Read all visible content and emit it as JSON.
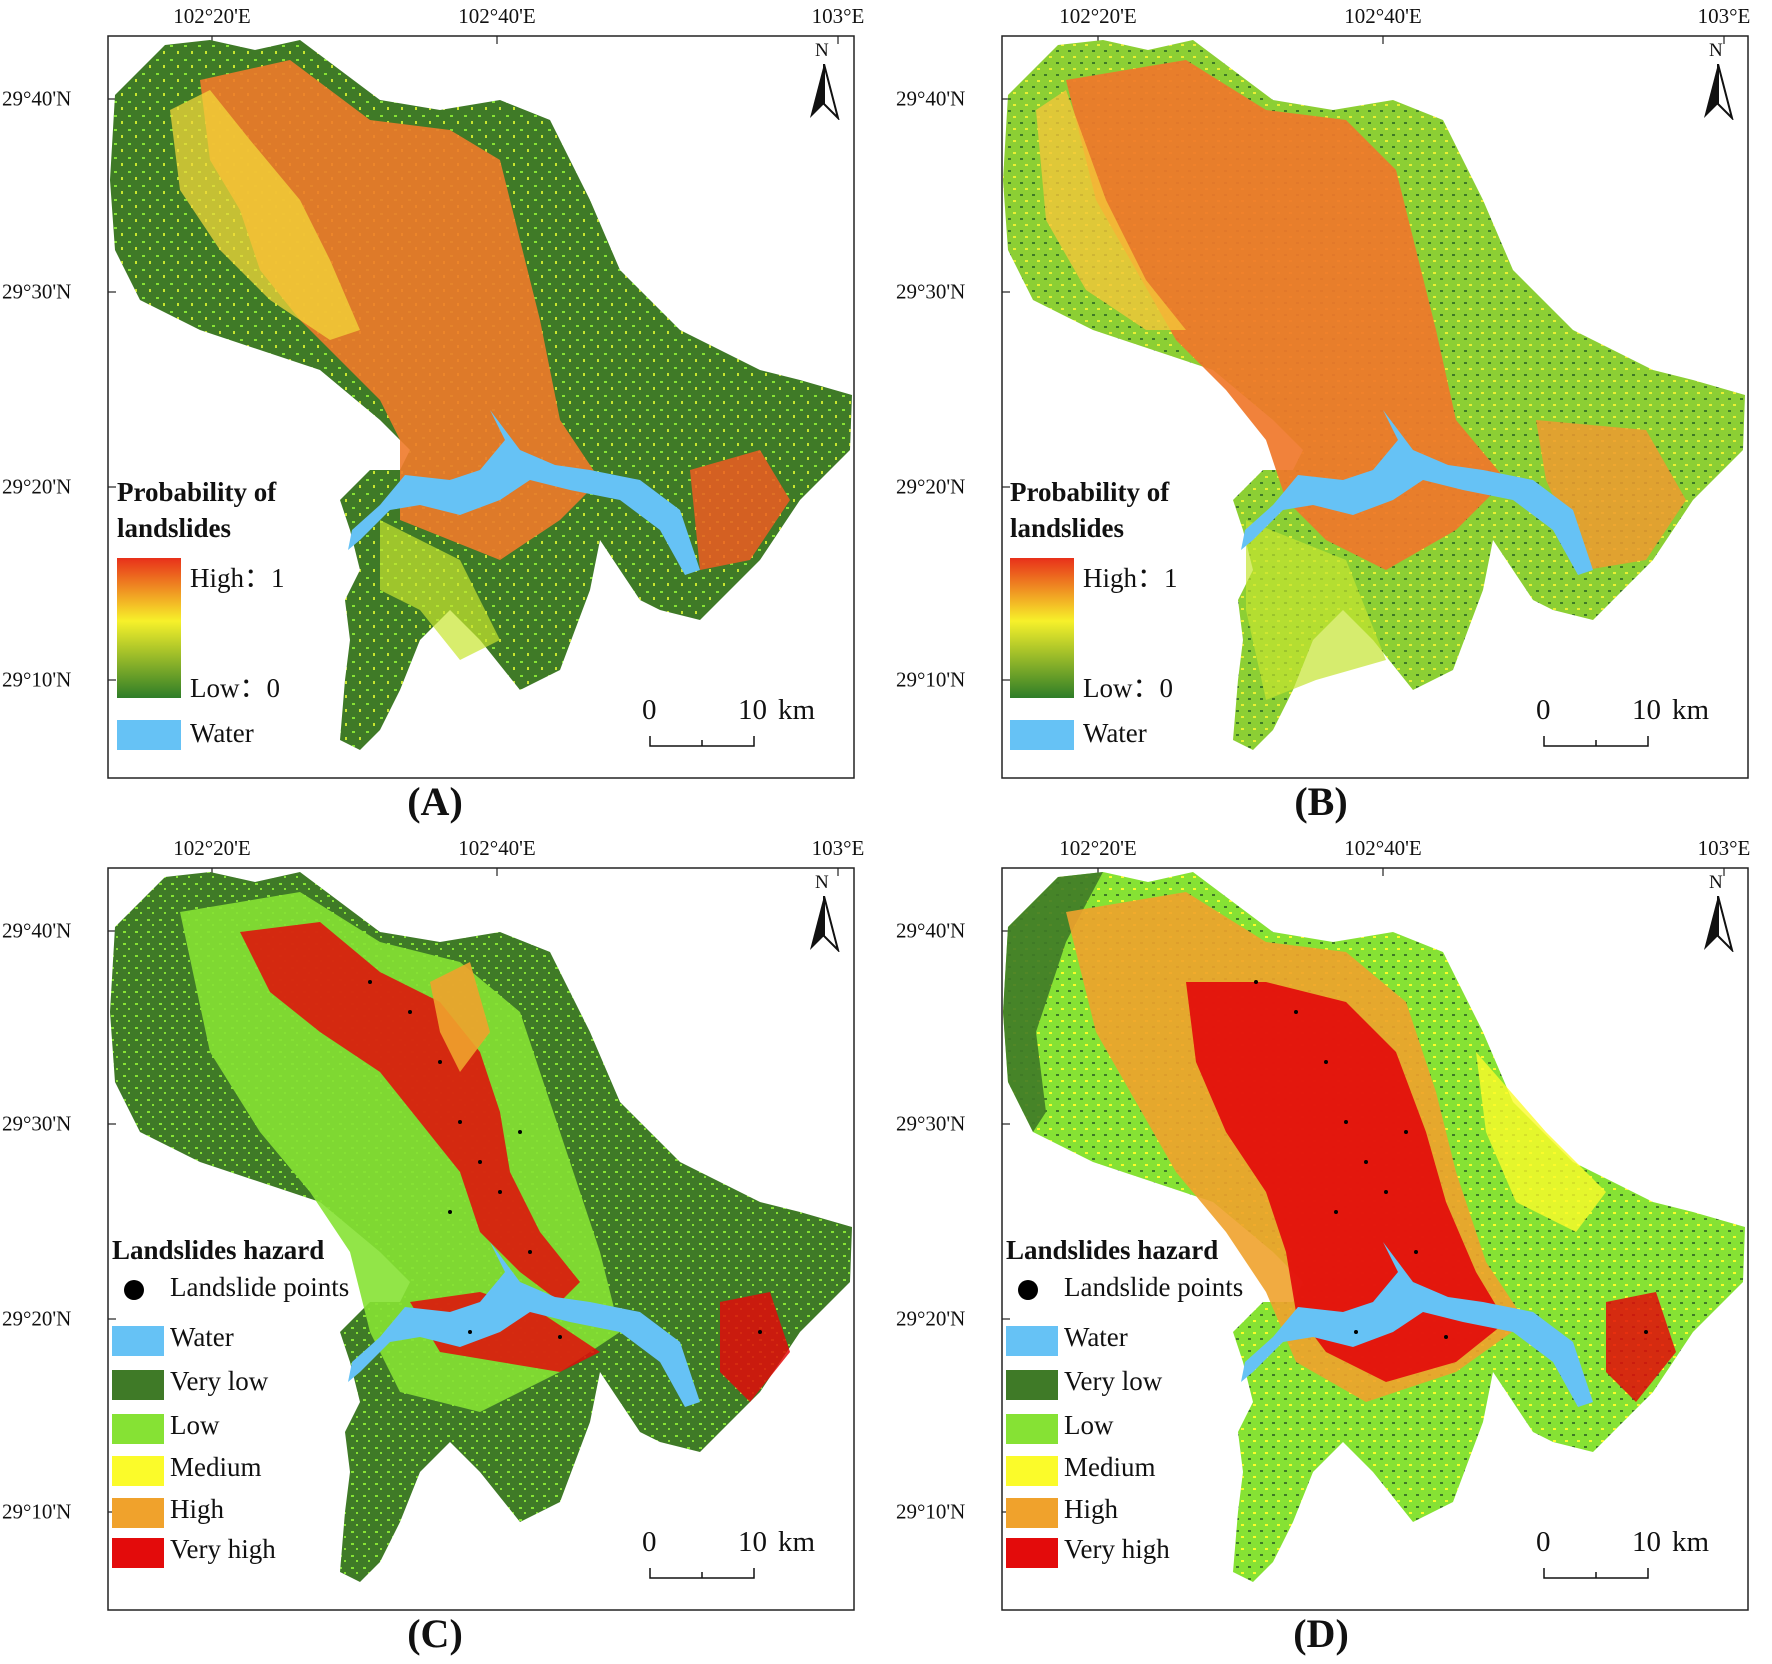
{
  "axes": {
    "lon_ticks": [
      "102°20'E",
      "102°40'E",
      "103°E"
    ],
    "lat_ticks": [
      "29°40'N",
      "29°30'N",
      "29°20'N",
      "29°10'N"
    ]
  },
  "north_label": "N",
  "scale_bar": {
    "start": "0",
    "end": "10",
    "unit": "km"
  },
  "colors": {
    "water": "#66c2f5",
    "very_low": "#3f7a27",
    "low": "#86e234",
    "medium": "#fbfb2a",
    "high": "#f0a22c",
    "very_high": "#e30b0b",
    "landslide_point": "#000000",
    "gradient_high": "#e8301a",
    "gradient_mid": "#f7f12a",
    "gradient_low": "#2e7d28"
  },
  "panels": [
    {
      "label": "(A)",
      "type": "probability",
      "legend": {
        "title_line1": "Probability of",
        "title_line2": "landslides",
        "high_label": "High：1",
        "low_label": "Low：0",
        "water_label": "Water"
      }
    },
    {
      "label": "(B)",
      "type": "probability",
      "legend": {
        "title_line1": "Probability of",
        "title_line2": "landslides",
        "high_label": "High：1",
        "low_label": "Low：0",
        "water_label": "Water"
      }
    },
    {
      "label": "(C)",
      "type": "hazard",
      "legend": {
        "title": "Landslides hazard",
        "points_label": "Landslide points",
        "classes": [
          "Water",
          "Very low",
          "Low",
          "Medium",
          "High",
          "Very high"
        ]
      }
    },
    {
      "label": "(D)",
      "type": "hazard",
      "legend": {
        "title": "Landslides hazard",
        "points_label": "Landslide points",
        "classes": [
          "Water",
          "Very low",
          "Low",
          "Medium",
          "High",
          "Very high"
        ]
      }
    }
  ]
}
